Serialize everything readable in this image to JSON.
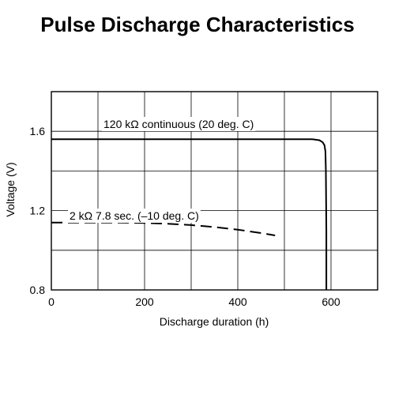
{
  "chart_data": {
    "type": "line",
    "title": "Pulse Discharge Characteristics",
    "xlabel": "Discharge duration (h)",
    "ylabel": "Voltage (V)",
    "xlim": [
      0,
      700
    ],
    "ylim": [
      0.8,
      1.8
    ],
    "x_ticks": [
      0,
      200,
      400,
      600
    ],
    "x_tick_labels": [
      "0",
      "200",
      "400",
      "600"
    ],
    "y_ticks": [
      0.8,
      1.2,
      1.6
    ],
    "y_tick_labels": [
      "0.8",
      "1.2",
      "1.6"
    ],
    "grid": true,
    "series": [
      {
        "name": "120 kΩ continuous (20 deg. C)",
        "style": "solid",
        "color": "#000000",
        "x": [
          0,
          100,
          200,
          300,
          400,
          500,
          560,
          575,
          582,
          586,
          588,
          589,
          590,
          590
        ],
        "y": [
          1.56,
          1.56,
          1.56,
          1.56,
          1.56,
          1.56,
          1.56,
          1.555,
          1.545,
          1.53,
          1.5,
          1.4,
          1.1,
          0.8
        ]
      },
      {
        "name": "2 kΩ 7.8 sec. (–10 deg. C)",
        "style": "dashed",
        "color": "#000000",
        "x": [
          0,
          50,
          100,
          150,
          200,
          250,
          300,
          350,
          400,
          450,
          480
        ],
        "y": [
          1.14,
          1.14,
          1.14,
          1.14,
          1.138,
          1.134,
          1.127,
          1.117,
          1.104,
          1.087,
          1.075
        ]
      }
    ],
    "annotations": [
      {
        "text": "120 kΩ continuous (20 deg. C)"
      },
      {
        "text": "2 kΩ 7.8 sec. (–10 deg. C)"
      }
    ]
  }
}
